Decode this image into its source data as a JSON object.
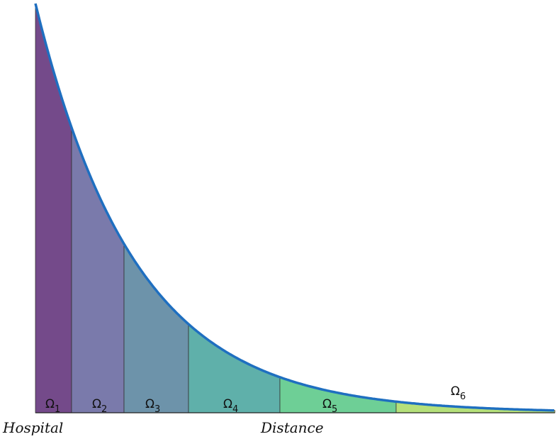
{
  "regions": [
    {
      "symbol": "Ω",
      "subscript": "1"
    },
    {
      "symbol": "Ω",
      "subscript": "2"
    },
    {
      "symbol": "Ω",
      "subscript": "3"
    },
    {
      "symbol": "Ω",
      "subscript": "4"
    },
    {
      "symbol": "Ω",
      "subscript": "5"
    },
    {
      "symbol": "Ω",
      "subscript": "6"
    }
  ],
  "origin_label": "Hospital",
  "axis_label": "Distance"
}
